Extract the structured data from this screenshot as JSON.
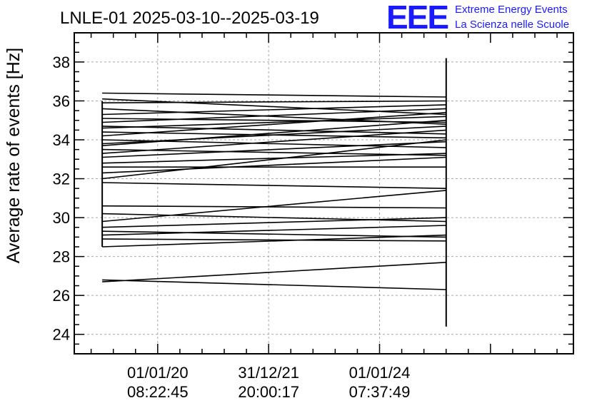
{
  "header": {
    "title": "LNLE-01 2025-03-10--2025-03-19"
  },
  "logo": {
    "mark": "EEE",
    "line1": "Extreme Energy Events",
    "line2": "La Scienza nelle Scuole",
    "color": "#1a1aff"
  },
  "chart_data": {
    "type": "line",
    "title": "LNLE-01 2025-03-10--2025-03-19",
    "ylabel": "Average rate of events [Hz]",
    "xlabel": "",
    "ylim": [
      23,
      39.5
    ],
    "yticks": [
      24,
      26,
      28,
      30,
      32,
      34,
      36,
      38
    ],
    "ytick_labels": [
      "24",
      "26",
      "28",
      "30",
      "32",
      "34",
      "36",
      "38"
    ],
    "xticks": [
      {
        "date": "01/01/20",
        "time": "08:22:45"
      },
      {
        "date": "31/12/21",
        "time": "20:00:17"
      },
      {
        "date": "01/01/24",
        "time": "07:37:49"
      }
    ],
    "x_range": [
      "2018-07-01",
      "2027-07-01"
    ],
    "grid": true,
    "line_color": "#000000",
    "vertical_bars": [
      {
        "x": "2019-01-01",
        "ymin": 28.5,
        "ymax": 36.0
      },
      {
        "x": "2025-03-15",
        "ymin": 24.4,
        "ymax": 38.2
      }
    ],
    "series": [
      {
        "x": [
          "2019-01-01",
          "2025-03-15"
        ],
        "y": [
          36.4,
          36.2
        ]
      },
      {
        "x": [
          "2019-01-01",
          "2025-03-15"
        ],
        "y": [
          36.1,
          35.3
        ]
      },
      {
        "x": [
          "2019-01-01",
          "2025-03-15"
        ],
        "y": [
          35.9,
          36.0
        ]
      },
      {
        "x": [
          "2019-01-01",
          "2025-03-15"
        ],
        "y": [
          35.6,
          34.8
        ]
      },
      {
        "x": [
          "2019-01-01",
          "2025-03-15"
        ],
        "y": [
          35.3,
          35.8
        ]
      },
      {
        "x": [
          "2019-01-01",
          "2025-03-15"
        ],
        "y": [
          35.1,
          34.9
        ]
      },
      {
        "x": [
          "2019-01-01",
          "2025-03-15"
        ],
        "y": [
          34.9,
          35.6
        ]
      },
      {
        "x": [
          "2019-01-01",
          "2025-03-15"
        ],
        "y": [
          34.7,
          34.3
        ]
      },
      {
        "x": [
          "2019-01-01",
          "2025-03-15"
        ],
        "y": [
          34.6,
          35.2
        ]
      },
      {
        "x": [
          "2019-01-01",
          "2025-03-15"
        ],
        "y": [
          34.4,
          34.1
        ]
      },
      {
        "x": [
          "2019-01-01",
          "2025-03-15"
        ],
        "y": [
          34.2,
          35.4
        ]
      },
      {
        "x": [
          "2019-01-01",
          "2025-03-15"
        ],
        "y": [
          34.0,
          33.6
        ]
      },
      {
        "x": [
          "2019-01-01",
          "2025-03-15"
        ],
        "y": [
          33.8,
          34.7
        ]
      },
      {
        "x": [
          "2019-01-01",
          "2025-03-15"
        ],
        "y": [
          33.7,
          35.0
        ]
      },
      {
        "x": [
          "2019-01-01",
          "2025-03-15"
        ],
        "y": [
          33.5,
          33.2
        ]
      },
      {
        "x": [
          "2019-01-01",
          "2025-03-15"
        ],
        "y": [
          33.3,
          34.5
        ]
      },
      {
        "x": [
          "2019-01-01",
          "2025-03-15"
        ],
        "y": [
          33.1,
          33.9
        ]
      },
      {
        "x": [
          "2019-01-01",
          "2025-03-15"
        ],
        "y": [
          32.8,
          33.3
        ]
      },
      {
        "x": [
          "2019-01-01",
          "2025-03-15"
        ],
        "y": [
          32.6,
          32.6
        ]
      },
      {
        "x": [
          "2019-01-01",
          "2025-03-15"
        ],
        "y": [
          32.3,
          33.1
        ]
      },
      {
        "x": [
          "2019-01-01",
          "2025-03-15"
        ],
        "y": [
          32.0,
          34.0
        ]
      },
      {
        "x": [
          "2019-01-01",
          "2025-03-15"
        ],
        "y": [
          31.8,
          31.5
        ]
      },
      {
        "x": [
          "2019-01-01",
          "2025-03-15"
        ],
        "y": [
          30.6,
          30.5
        ]
      },
      {
        "x": [
          "2019-01-01",
          "2025-03-15"
        ],
        "y": [
          30.2,
          29.8
        ]
      },
      {
        "x": [
          "2019-01-01",
          "2025-03-15"
        ],
        "y": [
          29.8,
          31.4
        ]
      },
      {
        "x": [
          "2019-01-01",
          "2025-03-15"
        ],
        "y": [
          29.5,
          30.0
        ]
      },
      {
        "x": [
          "2019-01-01",
          "2025-03-15"
        ],
        "y": [
          29.3,
          29.0
        ]
      },
      {
        "x": [
          "2019-01-01",
          "2025-03-15"
        ],
        "y": [
          29.1,
          29.6
        ]
      },
      {
        "x": [
          "2019-01-01",
          "2025-03-15"
        ],
        "y": [
          28.9,
          28.8
        ]
      },
      {
        "x": [
          "2019-01-01",
          "2025-03-15"
        ],
        "y": [
          28.5,
          29.1
        ]
      },
      {
        "x": [
          "2019-01-01",
          "2025-03-15"
        ],
        "y": [
          26.7,
          27.7
        ]
      },
      {
        "x": [
          "2019-01-01",
          "2025-03-15"
        ],
        "y": [
          26.8,
          26.3
        ]
      }
    ]
  }
}
